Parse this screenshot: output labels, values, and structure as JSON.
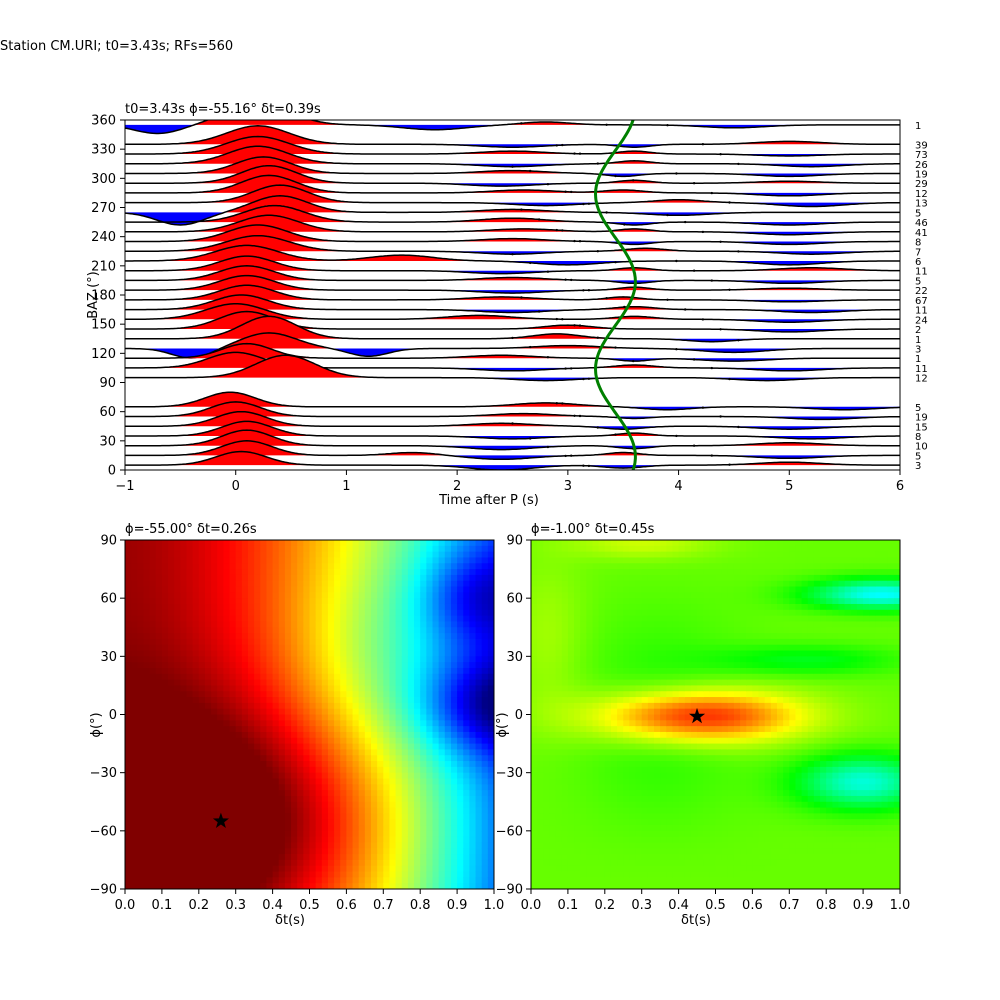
{
  "figure": {
    "suptitle": "Station CM.URI; t0=3.43s; RFs=560"
  },
  "colors": {
    "positive": "#ff0000",
    "negative": "#0000ff",
    "trace": "#000000",
    "timing_curve": "#008000"
  },
  "chart_data": [
    {
      "type": "line",
      "title": "t0=3.43s ϕ=-55.16° δt=0.39s",
      "xlabel": "Time after P (s)",
      "ylabel": "BAZ (°)",
      "xlim": [
        -1,
        6
      ],
      "ylim": [
        0,
        360
      ],
      "xticks": [
        "−1",
        "0",
        "1",
        "2",
        "3",
        "4",
        "5",
        "6"
      ],
      "yticks": [
        "0",
        "30",
        "60",
        "90",
        "120",
        "150",
        "180",
        "210",
        "240",
        "270",
        "300",
        "330",
        "360"
      ],
      "stacks": [
        {
          "baz": 5,
          "count": "3",
          "pulses": [
            [
              0.05,
              1.4,
              0.32
            ],
            [
              2.4,
              -0.5,
              0.4
            ],
            [
              3.5,
              -0.3,
              0.25
            ],
            [
              5.0,
              0.3,
              0.4
            ]
          ]
        },
        {
          "baz": 15,
          "count": "5",
          "pulses": [
            [
              0.1,
              1.5,
              0.32
            ],
            [
              1.6,
              0.3,
              0.3
            ],
            [
              2.4,
              -0.4,
              0.4
            ],
            [
              3.5,
              0.3,
              0.2
            ],
            [
              5.0,
              -0.3,
              0.4
            ]
          ]
        },
        {
          "baz": 25,
          "count": "10",
          "pulses": [
            [
              0.1,
              1.6,
              0.32
            ],
            [
              2.4,
              -0.4,
              0.4
            ],
            [
              3.6,
              -0.3,
              0.2
            ],
            [
              5.0,
              0.3,
              0.4
            ]
          ]
        },
        {
          "baz": 35,
          "count": "8",
          "pulses": [
            [
              0.1,
              1.5,
              0.32
            ],
            [
              2.5,
              -0.3,
              0.4
            ],
            [
              3.6,
              0.3,
              0.2
            ],
            [
              5.2,
              -0.3,
              0.4
            ]
          ]
        },
        {
          "baz": 45,
          "count": "15",
          "pulses": [
            [
              0.05,
              1.5,
              0.32
            ],
            [
              2.4,
              0.3,
              0.4
            ],
            [
              3.5,
              -0.3,
              0.25
            ],
            [
              5.0,
              -0.3,
              0.4
            ]
          ]
        },
        {
          "baz": 55,
          "count": "19",
          "pulses": [
            [
              0.0,
              1.5,
              0.32
            ],
            [
              2.6,
              0.3,
              0.4
            ],
            [
              3.6,
              -0.2,
              0.2
            ],
            [
              5.3,
              -0.3,
              0.4
            ]
          ]
        },
        {
          "baz": 65,
          "count": "5",
          "pulses": [
            [
              -0.05,
              1.5,
              0.32
            ],
            [
              2.8,
              0.4,
              0.4
            ],
            [
              3.9,
              -0.3,
              0.3
            ],
            [
              5.5,
              -0.3,
              0.4
            ]
          ]
        },
        {
          "baz": 95,
          "count": "12",
          "pulses": [
            [
              0.45,
              2.3,
              0.38
            ],
            [
              2.8,
              -0.3,
              0.4
            ],
            [
              4.8,
              -0.3,
              0.4
            ]
          ]
        },
        {
          "baz": 105,
          "count": "11",
          "pulses": [
            [
              0.0,
              1.6,
              0.35
            ],
            [
              2.5,
              -0.3,
              0.4
            ],
            [
              3.6,
              0.3,
              0.25
            ],
            [
              5.0,
              -0.3,
              0.4
            ]
          ]
        },
        {
          "baz": 115,
          "count": "1",
          "pulses": [
            [
              0.1,
              1.5,
              0.32
            ],
            [
              2.4,
              0.3,
              0.4
            ],
            [
              3.6,
              -0.3,
              0.2
            ],
            [
              4.5,
              -0.3,
              0.4
            ]
          ]
        },
        {
          "baz": 125,
          "count": "3",
          "pulses": [
            [
              -0.4,
              -1.0,
              0.25
            ],
            [
              0.3,
              1.6,
              0.35
            ],
            [
              1.2,
              -0.8,
              0.25
            ],
            [
              3.0,
              0.3,
              0.4
            ],
            [
              4.5,
              -0.4,
              0.4
            ]
          ]
        },
        {
          "baz": 135,
          "count": "1",
          "pulses": [
            [
              0.3,
              2.3,
              0.35
            ],
            [
              2.9,
              0.5,
              0.3
            ],
            [
              4.3,
              -0.3,
              0.3
            ]
          ]
        },
        {
          "baz": 145,
          "count": "2",
          "pulses": [
            [
              0.1,
              1.8,
              0.35
            ],
            [
              3.0,
              0.4,
              0.3
            ],
            [
              5.0,
              -0.3,
              0.4
            ]
          ]
        },
        {
          "baz": 155,
          "count": "24",
          "pulses": [
            [
              0.0,
              1.6,
              0.38
            ],
            [
              2.2,
              0.4,
              0.4
            ],
            [
              3.6,
              0.3,
              0.25
            ],
            [
              5.0,
              -0.3,
              0.4
            ]
          ]
        },
        {
          "baz": 165,
          "count": "11",
          "pulses": [
            [
              0.05,
              1.5,
              0.35
            ],
            [
              2.5,
              -0.3,
              0.4
            ],
            [
              3.6,
              0.3,
              0.25
            ],
            [
              5.2,
              -0.3,
              0.4
            ]
          ]
        },
        {
          "baz": 175,
          "count": "67",
          "pulses": [
            [
              0.1,
              1.5,
              0.35
            ],
            [
              2.4,
              0.3,
              0.4
            ],
            [
              3.5,
              0.3,
              0.2
            ],
            [
              5.0,
              -0.2,
              0.4
            ]
          ]
        },
        {
          "baz": 185,
          "count": "22",
          "pulses": [
            [
              0.1,
              1.5,
              0.35
            ],
            [
              2.5,
              -0.3,
              0.4
            ],
            [
              3.6,
              0.3,
              0.2
            ],
            [
              5.0,
              0.2,
              0.4
            ]
          ]
        },
        {
          "baz": 195,
          "count": "5",
          "pulses": [
            [
              0.1,
              1.5,
              0.35
            ],
            [
              2.5,
              0.3,
              0.4
            ],
            [
              3.6,
              -0.3,
              0.2
            ],
            [
              5.0,
              -0.3,
              0.4
            ]
          ]
        },
        {
          "baz": 205,
          "count": "11",
          "pulses": [
            [
              0.1,
              1.5,
              0.35
            ],
            [
              2.4,
              -0.3,
              0.4
            ],
            [
              3.6,
              0.3,
              0.2
            ],
            [
              5.2,
              0.3,
              0.4
            ]
          ]
        },
        {
          "baz": 215,
          "count": "6",
          "pulses": [
            [
              0.1,
              1.6,
              0.4
            ],
            [
              1.5,
              0.6,
              0.4
            ],
            [
              3.0,
              -0.4,
              0.4
            ],
            [
              5.0,
              -0.4,
              0.4
            ]
          ]
        },
        {
          "baz": 225,
          "count": "7",
          "pulses": [
            [
              0.2,
              1.6,
              0.4
            ],
            [
              2.5,
              -0.3,
              0.4
            ],
            [
              3.7,
              0.3,
              0.25
            ],
            [
              5.2,
              -0.3,
              0.4
            ]
          ]
        },
        {
          "baz": 235,
          "count": "8",
          "pulses": [
            [
              0.2,
              1.7,
              0.38
            ],
            [
              2.5,
              0.3,
              0.4
            ],
            [
              3.6,
              -0.3,
              0.2
            ],
            [
              5.0,
              -0.3,
              0.4
            ]
          ]
        },
        {
          "baz": 245,
          "count": "41",
          "pulses": [
            [
              0.3,
              1.7,
              0.38
            ],
            [
              2.6,
              0.3,
              0.4
            ],
            [
              3.6,
              0.3,
              0.2
            ],
            [
              5.0,
              -0.3,
              0.4
            ]
          ]
        },
        {
          "baz": 255,
          "count": "46",
          "pulses": [
            [
              0.35,
              1.7,
              0.38
            ],
            [
              2.5,
              0.4,
              0.4
            ],
            [
              3.6,
              -0.3,
              0.2
            ],
            [
              5.0,
              -0.3,
              0.4
            ]
          ]
        },
        {
          "baz": 265,
          "count": "5",
          "pulses": [
            [
              -0.5,
              -1.3,
              0.3
            ],
            [
              0.4,
              1.7,
              0.35
            ],
            [
              2.5,
              0.3,
              0.4
            ],
            [
              4.0,
              -0.3,
              0.4
            ]
          ]
        },
        {
          "baz": 275,
          "count": "13",
          "pulses": [
            [
              0.4,
              1.8,
              0.35
            ],
            [
              2.8,
              -0.3,
              0.4
            ],
            [
              4.0,
              0.3,
              0.3
            ],
            [
              5.2,
              -0.4,
              0.4
            ]
          ]
        },
        {
          "baz": 285,
          "count": "12",
          "pulses": [
            [
              0.3,
              1.8,
              0.35
            ],
            [
              2.6,
              0.3,
              0.4
            ],
            [
              3.5,
              0.3,
              0.25
            ],
            [
              5.0,
              -0.3,
              0.4
            ]
          ]
        },
        {
          "baz": 295,
          "count": "29",
          "pulses": [
            [
              0.3,
              1.8,
              0.35
            ],
            [
              2.4,
              -0.3,
              0.4
            ],
            [
              3.6,
              0.3,
              0.2
            ],
            [
              5.0,
              0.2,
              0.4
            ]
          ]
        },
        {
          "baz": 305,
          "count": "19",
          "pulses": [
            [
              0.25,
              1.7,
              0.35
            ],
            [
              2.5,
              0.3,
              0.4
            ],
            [
              3.5,
              -0.3,
              0.2
            ],
            [
              5.0,
              -0.3,
              0.4
            ]
          ]
        },
        {
          "baz": 315,
          "count": "26",
          "pulses": [
            [
              0.2,
              1.8,
              0.38
            ],
            [
              2.5,
              -0.3,
              0.4
            ],
            [
              3.6,
              0.3,
              0.2
            ],
            [
              5.2,
              -0.3,
              0.4
            ]
          ]
        },
        {
          "baz": 325,
          "count": "73",
          "pulses": [
            [
              0.2,
              1.8,
              0.4
            ],
            [
              2.5,
              0.3,
              0.4
            ],
            [
              3.6,
              0.3,
              0.2
            ],
            [
              5.0,
              -0.2,
              0.4
            ]
          ]
        },
        {
          "baz": 335,
          "count": "39",
          "pulses": [
            [
              0.2,
              1.9,
              0.4
            ],
            [
              2.5,
              -0.3,
              0.4
            ],
            [
              3.6,
              -0.3,
              0.2
            ],
            [
              5.0,
              0.3,
              0.4
            ]
          ]
        },
        {
          "baz": 355,
          "count": "1",
          "pulses": [
            [
              -0.7,
              -0.9,
              0.3
            ],
            [
              0.2,
              2.2,
              0.4
            ],
            [
              1.8,
              -0.5,
              0.4
            ],
            [
              2.8,
              0.3,
              0.3
            ],
            [
              4.5,
              -0.3,
              0.4
            ]
          ]
        }
      ],
      "timing_curve": {
        "t0": 3.43,
        "amplitude": 0.18,
        "period_deg": 180,
        "phase_deg": 13.8
      }
    },
    {
      "type": "heatmap",
      "title": "ϕ=-55.00° δt=0.26s",
      "xlabel": "δt(s)",
      "ylabel": "ϕ(°)",
      "xlim": [
        0,
        1
      ],
      "ylim": [
        -90,
        90
      ],
      "xticks": [
        "0.0",
        "0.1",
        "0.2",
        "0.3",
        "0.4",
        "0.5",
        "0.6",
        "0.7",
        "0.8",
        "0.9",
        "1.0"
      ],
      "yticks": [
        "−90",
        "−60",
        "−30",
        "0",
        "30",
        "60",
        "90"
      ],
      "colormap": "jet",
      "best": {
        "dt": 0.26,
        "phi": -55.0
      }
    },
    {
      "type": "heatmap",
      "title": "ϕ=-1.00° δt=0.45s",
      "xlabel": "δt(s)",
      "ylabel": "ϕ(°)",
      "xlim": [
        0,
        1
      ],
      "ylim": [
        -90,
        90
      ],
      "xticks": [
        "0.0",
        "0.1",
        "0.2",
        "0.3",
        "0.4",
        "0.5",
        "0.6",
        "0.7",
        "0.8",
        "0.9",
        "1.0"
      ],
      "yticks": [
        "−90",
        "−60",
        "−30",
        "0",
        "30",
        "60",
        "90"
      ],
      "colormap": "gist_rainbow",
      "best": {
        "dt": 0.45,
        "phi": -1.0
      }
    }
  ]
}
